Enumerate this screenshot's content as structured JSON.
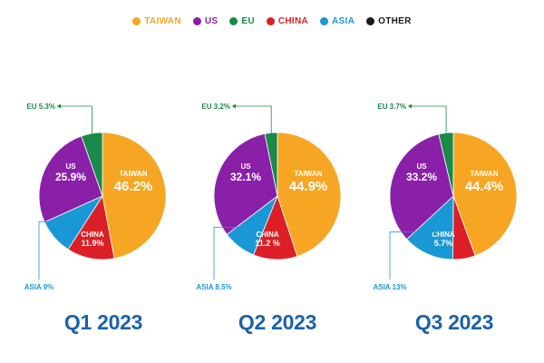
{
  "legend": [
    {
      "name": "TAIWAN",
      "color": "#f6a623"
    },
    {
      "name": "US",
      "color": "#8a20a8"
    },
    {
      "name": "EU",
      "color": "#1a8a4a"
    },
    {
      "name": "CHINA",
      "color": "#dc1f26"
    },
    {
      "name": "ASIA",
      "color": "#1a98d5"
    },
    {
      "name": "OTHER",
      "color": "#1a1a1a"
    }
  ],
  "chart_data": [
    {
      "type": "pie",
      "title": "Q1 2023",
      "slices": [
        {
          "name": "TAIWAN",
          "value": 46.2,
          "label_name": "TAIWAN",
          "label_value": "46.2%"
        },
        {
          "name": "CHINA",
          "value": 11.9,
          "label_name": "CHINA",
          "label_value": "11.9%"
        },
        {
          "name": "ASIA",
          "value": 9,
          "label_name": "ASIA 9%",
          "label_value": ""
        },
        {
          "name": "US",
          "value": 25.9,
          "label_name": "US",
          "label_value": "25.9%"
        },
        {
          "name": "EU",
          "value": 5.3,
          "label_name": "EU 5.3%",
          "label_value": ""
        }
      ]
    },
    {
      "type": "pie",
      "title": "Q2 2023",
      "slices": [
        {
          "name": "TAIWAN",
          "value": 44.9,
          "label_name": "TAIWAN",
          "label_value": "44.9%"
        },
        {
          "name": "CHINA",
          "value": 11.2,
          "label_name": "CHINA",
          "label_value": "11.2 %"
        },
        {
          "name": "ASIA",
          "value": 8.5,
          "label_name": "ASIA 8.5%",
          "label_value": ""
        },
        {
          "name": "US",
          "value": 32.1,
          "label_name": "US",
          "label_value": "32.1%"
        },
        {
          "name": "EU",
          "value": 3.2,
          "label_name": "EU 3.2%",
          "label_value": ""
        }
      ]
    },
    {
      "type": "pie",
      "title": "Q3 2023",
      "slices": [
        {
          "name": "TAIWAN",
          "value": 44.4,
          "label_name": "TAIWAN",
          "label_value": "44.4%"
        },
        {
          "name": "CHINA",
          "value": 5.7,
          "label_name": "CHINA",
          "label_value": "5.7%"
        },
        {
          "name": "ASIA",
          "value": 13,
          "label_name": "ASIA 13%",
          "label_value": ""
        },
        {
          "name": "US",
          "value": 33.2,
          "label_name": "US",
          "label_value": "33.2%"
        },
        {
          "name": "EU",
          "value": 3.7,
          "label_name": "EU 3.7%",
          "label_value": ""
        }
      ]
    }
  ]
}
